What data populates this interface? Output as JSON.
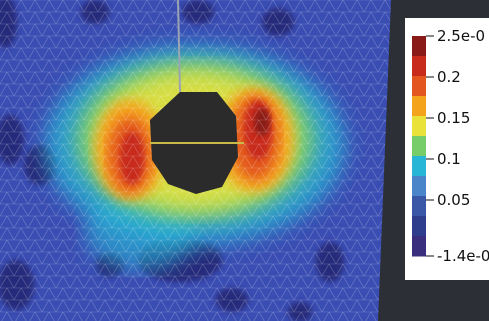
{
  "legend": {
    "max_label": "2.5e-0",
    "min_label": "-1.4e-0",
    "ticks": [
      "0.2",
      "0.15",
      "0.1",
      "0.05"
    ],
    "colors": [
      "#8a1a18",
      "#c82b1c",
      "#e3561f",
      "#f4a31c",
      "#e9e23a",
      "#77cd6a",
      "#28b6d6",
      "#4a84c9",
      "#3a56a6",
      "#2e3e8d",
      "#3a2f7c"
    ]
  },
  "mesh": {
    "background_color": "#3a4db3",
    "hole_color": "#2b2b2b",
    "crack_color": "#c9b84a",
    "panel_color": "#2c3036"
  }
}
